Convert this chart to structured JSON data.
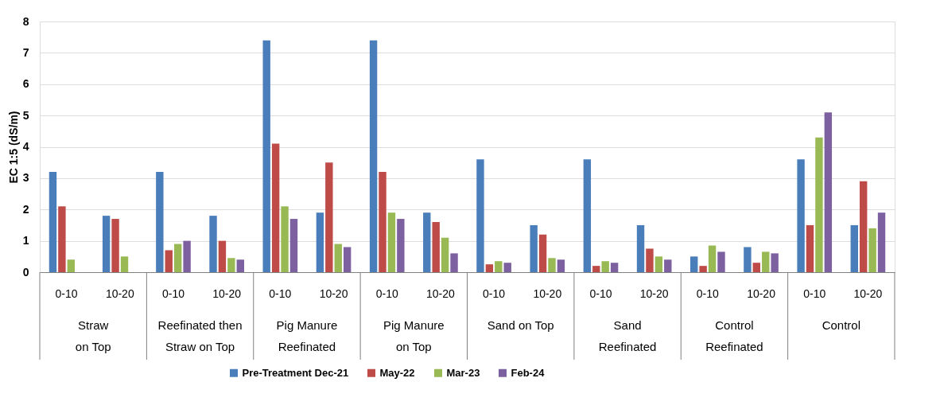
{
  "chart_data": {
    "type": "bar",
    "ylabel": "EC 1:5 (dS/m)",
    "categories": [
      "0-10",
      "10-20",
      "0-10",
      "10-20",
      "0-10",
      "10-20",
      "0-10",
      "10-20",
      "0-10",
      "10-20",
      "0-10",
      "10-20",
      "0-10",
      "10-20",
      "0-10",
      "10-20"
    ],
    "annotations": [
      "Straw\non Top",
      "Reefinated then\nStraw on Top",
      "Pig Manure\nReefinated",
      "Pig Manure\non Top",
      "Sand on Top",
      "Sand\nReefinated",
      "Control\nReefinated",
      "Control"
    ],
    "series": [
      {
        "name": "Pre-Treatment Dec-21",
        "color": "#4a7ebb",
        "values": [
          3.2,
          1.8,
          3.2,
          1.8,
          7.4,
          1.9,
          7.4,
          1.9,
          3.6,
          1.5,
          3.6,
          1.5,
          0.5,
          0.8,
          3.6,
          1.5
        ]
      },
      {
        "name": "May-22",
        "color": "#be4b48",
        "values": [
          2.1,
          1.7,
          0.7,
          1.0,
          4.1,
          3.5,
          3.2,
          1.6,
          0.25,
          1.2,
          0.2,
          0.75,
          0.2,
          0.3,
          1.5,
          2.9
        ]
      },
      {
        "name": "Mar-23",
        "color": "#98b954",
        "values": [
          0.4,
          0.5,
          0.9,
          0.45,
          2.1,
          0.9,
          1.9,
          1.1,
          0.35,
          0.45,
          0.35,
          0.5,
          0.85,
          0.65,
          4.3,
          1.4
        ]
      },
      {
        "name": "Feb-24",
        "color": "#7d60a0",
        "values": [
          null,
          null,
          1.0,
          0.4,
          1.7,
          0.8,
          1.7,
          0.6,
          0.3,
          0.4,
          0.3,
          0.4,
          0.65,
          0.6,
          5.1,
          1.9
        ]
      }
    ],
    "ylim": [
      0,
      8
    ],
    "yticks": [
      0,
      1,
      2,
      3,
      4,
      5,
      6,
      7,
      8
    ],
    "grid": "y",
    "legend": "bottom"
  }
}
